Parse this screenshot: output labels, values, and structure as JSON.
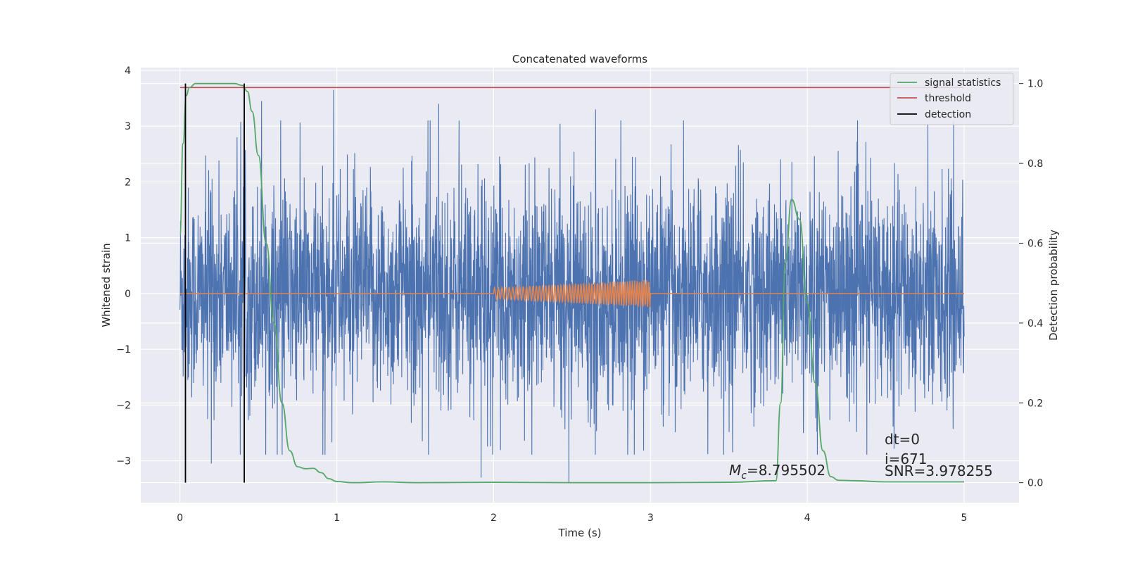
{
  "chart_data": {
    "type": "line",
    "title": "Concatenated waveforms",
    "xlabel": "Time (s)",
    "ylabel": "Whitened strain",
    "y2label": "Detection probability",
    "xlim": [
      -0.25,
      5.35
    ],
    "ylim": [
      -3.75,
      4.05
    ],
    "y2lim": [
      -0.05,
      1.04
    ],
    "grid": true,
    "legend_position": "top-right",
    "x_ticks": [
      0,
      1,
      2,
      3,
      4,
      5
    ],
    "x_tick_labels": [
      "0",
      "1",
      "2",
      "3",
      "4",
      "5"
    ],
    "y_ticks": [
      4,
      3,
      2,
      1,
      0,
      -1,
      -2,
      -3
    ],
    "y_tick_labels": [
      "4",
      "3",
      "2",
      "1",
      "0",
      "−1",
      "−2",
      "−3"
    ],
    "y2_ticks": [
      1.0,
      0.8,
      0.6,
      0.4,
      0.2,
      0.0
    ],
    "y2_tick_labels": [
      "1.0",
      "0.8",
      "0.6",
      "0.4",
      "0.2",
      "0.0"
    ],
    "series": [
      {
        "name": "",
        "axis": "left",
        "color": "#4c72b0",
        "kind": "noise",
        "x_range": [
          0,
          5
        ],
        "amplitude_envelope": {
          "typical": 1.3,
          "peak_max": 3.65,
          "peak_min": -3.4
        },
        "notable_peaks": [
          {
            "x": 0.98,
            "y": 3.65
          },
          {
            "x": 0.52,
            "y": 3.45
          },
          {
            "x": 1.65,
            "y": 3.4
          },
          {
            "x": 1.78,
            "y": 3.1
          },
          {
            "x": 2.65,
            "y": 3.3
          },
          {
            "x": 2.48,
            "y": -3.4
          },
          {
            "x": 1.92,
            "y": -3.3
          },
          {
            "x": 0.2,
            "y": -3.05
          }
        ]
      },
      {
        "name": "",
        "axis": "left",
        "color": "#dd8452",
        "kind": "chirp",
        "baseline": 0,
        "chirp_start": 2.0,
        "chirp_end": 3.0,
        "amplitude_start": 0.1,
        "amplitude_end": 0.25,
        "cycles": 55
      },
      {
        "name": "signal statistics",
        "axis": "right",
        "color": "#55a868",
        "x": [
          0.0,
          0.02,
          0.04,
          0.06,
          0.1,
          0.2,
          0.35,
          0.4,
          0.43,
          0.46,
          0.5,
          0.55,
          0.6,
          0.65,
          0.7,
          0.75,
          0.8,
          0.85,
          0.9,
          0.95,
          1.0,
          1.1,
          1.3,
          1.5,
          2.0,
          2.5,
          3.0,
          3.5,
          3.8,
          3.83,
          3.86,
          3.9,
          3.95,
          4.0,
          4.05,
          4.1,
          4.15,
          4.2,
          4.3,
          4.5,
          5.0
        ],
        "values": [
          0.62,
          0.85,
          0.97,
          0.99,
          1.0,
          1.0,
          1.0,
          0.995,
          0.98,
          0.93,
          0.82,
          0.6,
          0.4,
          0.2,
          0.08,
          0.04,
          0.035,
          0.036,
          0.025,
          0.01,
          0.003,
          0.0,
          0.002,
          0.0,
          0.001,
          0.0,
          0.0,
          0.001,
          0.005,
          0.2,
          0.55,
          0.71,
          0.66,
          0.45,
          0.25,
          0.08,
          0.015,
          0.006,
          0.005,
          0.002,
          0.002
        ]
      },
      {
        "name": "threshold",
        "axis": "right",
        "color": "#c44e52",
        "x": [
          0.0,
          5.0
        ],
        "values": [
          0.99,
          0.99
        ]
      },
      {
        "name": "detection",
        "axis": "right",
        "color": "#000000",
        "kind": "vlines",
        "x": [
          0.035,
          0.41
        ],
        "y_range": [
          0.0,
          1.0
        ]
      }
    ],
    "legend": [
      {
        "label": "signal statistics",
        "color": "#55a868"
      },
      {
        "label": "threshold",
        "color": "#c44e52"
      },
      {
        "label": "detection",
        "color": "#000000"
      }
    ],
    "annotations": {
      "mc_symbol": "M",
      "mc_subscript": "c",
      "mc_value": "=8.795502",
      "dt": "dt=0",
      "i": "i=671",
      "snr": "SNR=3.978255"
    }
  }
}
